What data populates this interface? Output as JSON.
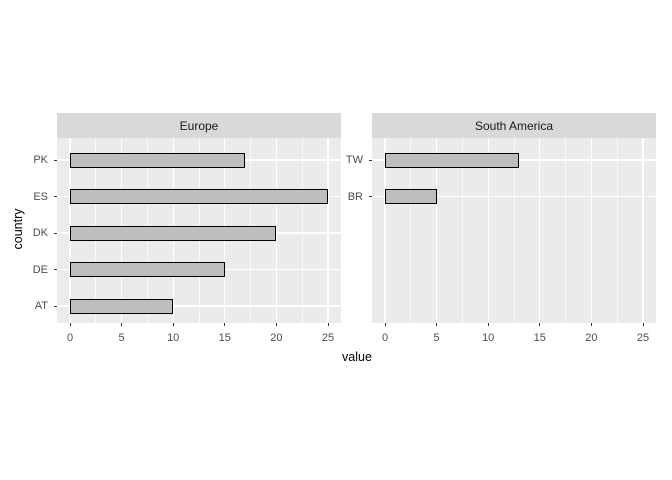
{
  "chart_data": {
    "type": "bar",
    "orientation": "horizontal",
    "xlabel": "value",
    "ylabel": "country",
    "x_ticks": [
      0,
      5,
      10,
      15,
      20,
      25
    ],
    "x_minor_ticks": [
      2.5,
      7.5,
      12.5,
      17.5,
      22.5
    ],
    "xlim": [
      -1.25,
      26.25
    ],
    "grid": true,
    "legend": "none",
    "facets": [
      {
        "label": "Europe",
        "categories": [
          "PK",
          "ES",
          "DK",
          "DE",
          "AT"
        ],
        "values": [
          17,
          25,
          20,
          15,
          10
        ]
      },
      {
        "label": "South America",
        "categories": [
          "TW",
          "BR"
        ],
        "values": [
          13,
          5
        ]
      }
    ],
    "colors": {
      "panel_bg": "#ebebeb",
      "strip_bg": "#d9d9d9",
      "strip_text": "#1a1a1a",
      "bar_fill": "#bebebe",
      "bar_border": "#000000",
      "gridline": "#ffffff",
      "tick_mark": "#333333",
      "axis_text": "#4d4d4d",
      "axis_title": "#000000"
    }
  }
}
